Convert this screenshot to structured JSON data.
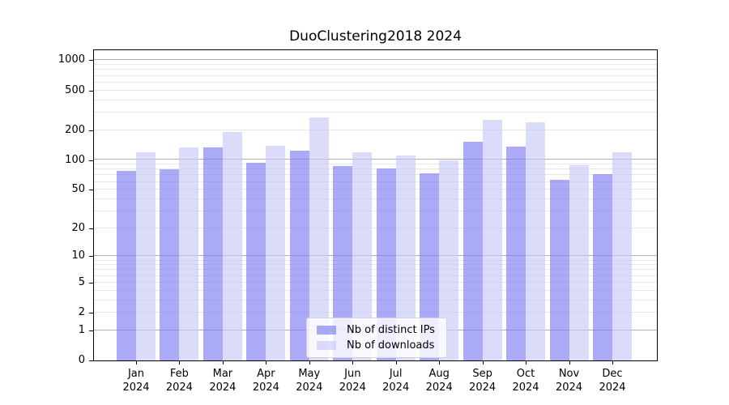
{
  "title": "DuoClustering2018 2024",
  "chart_data": {
    "type": "bar",
    "title": "DuoClustering2018 2024",
    "categories": [
      "Jan\n2024",
      "Feb\n2024",
      "Mar\n2024",
      "Apr\n2024",
      "May\n2024",
      "Jun\n2024",
      "Jul\n2024",
      "Aug\n2024",
      "Sep\n2024",
      "Oct\n2024",
      "Nov\n2024",
      "Dec\n2024"
    ],
    "series": [
      {
        "name": "Nb of distinct IPs",
        "color": "rgba(124,124,242,0.65)",
        "values": [
          78,
          80,
          133,
          93,
          124,
          87,
          82,
          73,
          153,
          136,
          63,
          72
        ]
      },
      {
        "name": "Nb of downloads",
        "color": "rgba(200,200,248,0.65)",
        "values": [
          120,
          135,
          190,
          138,
          270,
          119,
          110,
          100,
          255,
          240,
          89,
          119
        ]
      }
    ],
    "y_axis": {
      "scale": "log10(1+v)",
      "tick_values": [
        0,
        1,
        2,
        5,
        10,
        20,
        50,
        100,
        200,
        500,
        1000
      ],
      "tick_labels": [
        "0",
        "1",
        "2",
        "5",
        "10",
        "20",
        "50",
        "100",
        "200",
        "500",
        "1000"
      ],
      "major_gridline_values": [
        1,
        10,
        100,
        1000
      ],
      "ylim": [
        0,
        1250
      ]
    },
    "xlabel": "",
    "ylabel": "",
    "grid": true,
    "legend_position": "lower center"
  },
  "legend": {
    "item_ips": "Nb of distinct IPs",
    "item_downloads": "Nb of downloads"
  }
}
